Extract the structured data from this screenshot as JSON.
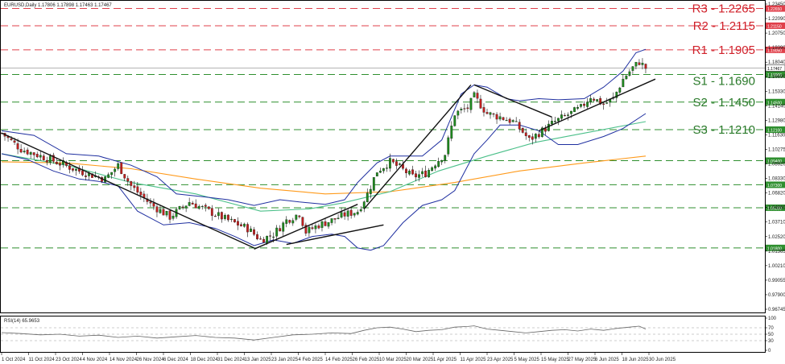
{
  "window": {
    "header": "EURUSD,Daily  1.17806 1.17898 1.17463 1.17467"
  },
  "colors": {
    "background": "#ffffff",
    "frame": "#000000",
    "bull": "#1f8a1f",
    "bear": "#c01f1f",
    "bollinger": "#1f2fa0",
    "sma_mid": "#4cc08a",
    "sma_long": "#ff9a1a",
    "trendline": "#111111",
    "resistance": "#e0404b",
    "support": "#2f8f2f",
    "resistance_text": "#d0202a",
    "support_text": "#2a7a2a",
    "rsi": "#666666"
  },
  "levels": {
    "resistance": [
      {
        "name": "R3",
        "label": "R3 - 1.2265",
        "value": 1.2265,
        "tag": "1.22650"
      },
      {
        "name": "R2",
        "label": "R2 - 1.2115",
        "value": 1.2115,
        "tag": "1.21150"
      },
      {
        "name": "R1",
        "label": "R1 - 1.1905",
        "value": 1.1905,
        "tag": "1.19050"
      }
    ],
    "support": [
      {
        "name": "S1",
        "label": "S1 - 1.1690",
        "value": 1.169,
        "tag": "1.16900"
      },
      {
        "name": "S2",
        "label": "S2 - 1.1450",
        "value": 1.145,
        "tag": "1.14500"
      },
      {
        "name": "S3",
        "label": "S3 - 1.1210",
        "value": 1.121,
        "tag": "1.12100"
      },
      {
        "name": "",
        "label": "",
        "value": 1.094,
        "tag": "1.09400"
      },
      {
        "name": "",
        "label": "",
        "value": 1.073,
        "tag": "1.07300"
      },
      {
        "name": "",
        "label": "",
        "value": 1.053,
        "tag": "1.05300"
      },
      {
        "name": "",
        "label": "",
        "value": 1.018,
        "tag": "1.01800"
      }
    ]
  },
  "last_price": {
    "value": 1.17467,
    "tag": "1.17467"
  },
  "chart_data": [
    {
      "type": "candlestick",
      "title": "EURUSD,Daily",
      "ylim": [
        0.9625,
        1.2325
      ],
      "y_ticks": [
        "1.23450",
        "1.22090",
        "1.20750",
        "1.19390",
        "1.18040",
        "1.16690",
        "1.15330",
        "1.14140",
        "1.12980",
        "1.11630",
        "1.10275",
        "1.08920",
        "1.08330",
        "1.06820",
        "1.04860",
        "1.03710",
        "1.02520",
        "1.01365",
        "1.00210",
        "0.99055",
        "0.97900",
        "0.96745"
      ],
      "x_ticks": [
        "1 Oct 2024",
        "11 Oct 2024",
        "23 Oct 2024",
        "4 Nov 2024",
        "14 Nov 2024",
        "26 Nov 2024",
        "6 Dec 2024",
        "18 Dec 2024",
        "31 Dec 2024",
        "13 Jan 2025",
        "23 Jan 2025",
        "4 Feb 2025",
        "14 Feb 2025",
        "26 Feb 2025",
        "10 Mar 2025",
        "20 Mar 2025",
        "1 Apr 2025",
        "11 Apr 2025",
        "23 Apr 2025",
        "5 May 2025",
        "15 May 2025",
        "27 May 2025",
        "6 Jun 2025",
        "18 Jun 2025",
        "30 Jun 2025"
      ],
      "anchors": [
        {
          "x": 0,
          "close": 1.118
        },
        {
          "x": 6,
          "close": 1.104
        },
        {
          "x": 14,
          "close": 1.096
        },
        {
          "x": 24,
          "close": 1.085
        },
        {
          "x": 32,
          "close": 1.078
        },
        {
          "x": 36,
          "close": 1.09
        },
        {
          "x": 40,
          "close": 1.072
        },
        {
          "x": 46,
          "close": 1.056
        },
        {
          "x": 52,
          "close": 1.045
        },
        {
          "x": 58,
          "close": 1.058
        },
        {
          "x": 64,
          "close": 1.05
        },
        {
          "x": 70,
          "close": 1.042
        },
        {
          "x": 76,
          "close": 1.035
        },
        {
          "x": 80,
          "close": 1.025
        },
        {
          "x": 84,
          "close": 1.03
        },
        {
          "x": 88,
          "close": 1.042
        },
        {
          "x": 92,
          "close": 1.048
        },
        {
          "x": 94,
          "close": 1.032
        },
        {
          "x": 98,
          "close": 1.038
        },
        {
          "x": 102,
          "close": 1.042
        },
        {
          "x": 106,
          "close": 1.047
        },
        {
          "x": 110,
          "close": 1.05
        },
        {
          "x": 113,
          "close": 1.065
        },
        {
          "x": 116,
          "close": 1.085
        },
        {
          "x": 120,
          "close": 1.093
        },
        {
          "x": 123,
          "close": 1.088
        },
        {
          "x": 127,
          "close": 1.08
        },
        {
          "x": 131,
          "close": 1.083
        },
        {
          "x": 134,
          "close": 1.092
        },
        {
          "x": 137,
          "close": 1.1
        },
        {
          "x": 140,
          "close": 1.135
        },
        {
          "x": 144,
          "close": 1.14
        },
        {
          "x": 146,
          "close": 1.15
        },
        {
          "x": 150,
          "close": 1.135
        },
        {
          "x": 154,
          "close": 1.132
        },
        {
          "x": 158,
          "close": 1.128
        },
        {
          "x": 161,
          "close": 1.119
        },
        {
          "x": 163,
          "close": 1.112
        },
        {
          "x": 167,
          "close": 1.12
        },
        {
          "x": 171,
          "close": 1.128
        },
        {
          "x": 175,
          "close": 1.134
        },
        {
          "x": 179,
          "close": 1.14
        },
        {
          "x": 182,
          "close": 1.15
        },
        {
          "x": 186,
          "close": 1.143
        },
        {
          "x": 189,
          "close": 1.148
        },
        {
          "x": 192,
          "close": 1.165
        },
        {
          "x": 195,
          "close": 1.175
        },
        {
          "x": 197,
          "close": 1.18
        },
        {
          "x": 199,
          "close": 1.1747
        }
      ],
      "series": [
        {
          "name": "bollinger_upper",
          "points": [
            [
              0,
              1.12
            ],
            [
              10,
              1.116
            ],
            [
              20,
              1.1
            ],
            [
              30,
              1.098
            ],
            [
              40,
              1.09
            ],
            [
              48,
              1.08
            ],
            [
              54,
              1.065
            ],
            [
              64,
              1.062
            ],
            [
              70,
              1.06
            ],
            [
              78,
              1.055
            ],
            [
              86,
              1.06
            ],
            [
              92,
              1.058
            ],
            [
              100,
              1.056
            ],
            [
              106,
              1.06
            ],
            [
              110,
              1.075
            ],
            [
              116,
              1.092
            ],
            [
              120,
              1.098
            ],
            [
              130,
              1.098
            ],
            [
              136,
              1.112
            ],
            [
              142,
              1.152
            ],
            [
              146,
              1.16
            ],
            [
              150,
              1.158
            ],
            [
              156,
              1.148
            ],
            [
              160,
              1.146
            ],
            [
              166,
              1.148
            ],
            [
              172,
              1.147
            ],
            [
              180,
              1.148
            ],
            [
              186,
              1.158
            ],
            [
              192,
              1.172
            ],
            [
              196,
              1.188
            ],
            [
              199,
              1.191
            ]
          ]
        },
        {
          "name": "bollinger_lower",
          "points": [
            [
              0,
              1.1
            ],
            [
              8,
              1.095
            ],
            [
              16,
              1.085
            ],
            [
              24,
              1.078
            ],
            [
              30,
              1.076
            ],
            [
              36,
              1.072
            ],
            [
              42,
              1.05
            ],
            [
              50,
              1.038
            ],
            [
              58,
              1.04
            ],
            [
              66,
              1.035
            ],
            [
              72,
              1.028
            ],
            [
              78,
              1.02
            ],
            [
              84,
              1.025
            ],
            [
              90,
              1.022
            ],
            [
              96,
              1.028
            ],
            [
              102,
              1.03
            ],
            [
              106,
              1.028
            ],
            [
              110,
              1.018
            ],
            [
              114,
              1.016
            ],
            [
              118,
              1.02
            ],
            [
              124,
              1.04
            ],
            [
              130,
              1.055
            ],
            [
              136,
              1.06
            ],
            [
              140,
              1.068
            ],
            [
              146,
              1.1
            ],
            [
              150,
              1.112
            ],
            [
              154,
              1.125
            ],
            [
              160,
              1.125
            ],
            [
              166,
              1.12
            ],
            [
              172,
              1.108
            ],
            [
              178,
              1.108
            ],
            [
              186,
              1.115
            ],
            [
              192,
              1.122
            ],
            [
              199,
              1.135
            ]
          ]
        },
        {
          "name": "sma_mid",
          "points": [
            [
              0,
              1.1
            ],
            [
              20,
              1.09
            ],
            [
              40,
              1.075
            ],
            [
              60,
              1.065
            ],
            [
              80,
              1.05
            ],
            [
              95,
              1.052
            ],
            [
              105,
              1.057
            ],
            [
              120,
              1.067
            ],
            [
              135,
              1.085
            ],
            [
              150,
              1.098
            ],
            [
              165,
              1.11
            ],
            [
              180,
              1.118
            ],
            [
              199,
              1.128
            ]
          ]
        },
        {
          "name": "sma_long",
          "points": [
            [
              0,
              1.093
            ],
            [
              20,
              1.092
            ],
            [
              40,
              1.087
            ],
            [
              60,
              1.078
            ],
            [
              80,
              1.07
            ],
            [
              100,
              1.065
            ],
            [
              120,
              1.067
            ],
            [
              140,
              1.075
            ],
            [
              160,
              1.085
            ],
            [
              180,
              1.092
            ],
            [
              199,
              1.098
            ]
          ]
        },
        {
          "name": "trend_1",
          "points": [
            [
              0,
              1.118
            ],
            [
              78,
              1.018
            ]
          ]
        },
        {
          "name": "trend_2",
          "points": [
            [
              78,
              1.017
            ],
            [
              110,
              1.056
            ]
          ]
        },
        {
          "name": "trend_3",
          "points": [
            [
              88,
              1.021
            ],
            [
              118,
              1.038
            ]
          ]
        },
        {
          "name": "trend_4",
          "points": [
            [
              112,
              1.052
            ],
            [
              145,
              1.16
            ]
          ]
        },
        {
          "name": "trend_5",
          "points": [
            [
              146,
              1.16
            ],
            [
              170,
              1.132
            ]
          ]
        },
        {
          "name": "trend_6",
          "points": [
            [
              166,
              1.12
            ],
            [
              202,
              1.165
            ]
          ]
        }
      ]
    },
    {
      "type": "line",
      "title": "RSI(14) 65.9653",
      "ylim": [
        0,
        100
      ],
      "y_ticks": [
        "100",
        "70",
        "50",
        "30",
        "0"
      ],
      "series": [
        {
          "name": "RSI",
          "points": [
            [
              0,
              55
            ],
            [
              6,
              52
            ],
            [
              12,
              48
            ],
            [
              18,
              50
            ],
            [
              24,
              44
            ],
            [
              30,
              47
            ],
            [
              36,
              40
            ],
            [
              42,
              44
            ],
            [
              48,
              38
            ],
            [
              54,
              42
            ],
            [
              60,
              46
            ],
            [
              66,
              40
            ],
            [
              72,
              38
            ],
            [
              78,
              32
            ],
            [
              84,
              40
            ],
            [
              90,
              48
            ],
            [
              96,
              50
            ],
            [
              102,
              54
            ],
            [
              108,
              52
            ],
            [
              112,
              62
            ],
            [
              116,
              70
            ],
            [
              120,
              72
            ],
            [
              124,
              66
            ],
            [
              128,
              58
            ],
            [
              132,
              62
            ],
            [
              136,
              64
            ],
            [
              140,
              72
            ],
            [
              144,
              74
            ],
            [
              146,
              76
            ],
            [
              150,
              66
            ],
            [
              154,
              62
            ],
            [
              158,
              58
            ],
            [
              162,
              54
            ],
            [
              166,
              58
            ],
            [
              170,
              62
            ],
            [
              174,
              64
            ],
            [
              178,
              60
            ],
            [
              182,
              66
            ],
            [
              186,
              62
            ],
            [
              190,
              68
            ],
            [
              194,
              72
            ],
            [
              197,
              75
            ],
            [
              199,
              66
            ]
          ]
        }
      ]
    }
  ]
}
